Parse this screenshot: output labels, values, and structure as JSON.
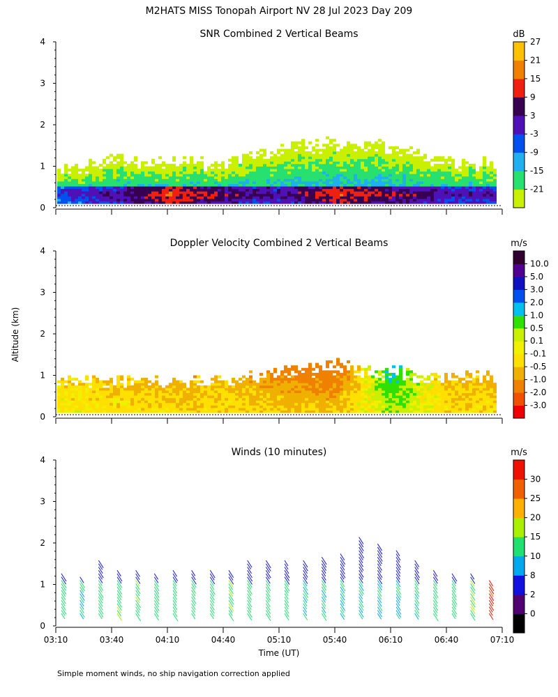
{
  "figure": {
    "title": "M2HATS MISS Tonopah Airport NV  28 Jul 2023 Day 209",
    "ylabel": "Altitude (km)",
    "xlabel": "Time (UT)",
    "footnote": "Simple moment winds, no ship navigation correction applied"
  },
  "chart_data": [
    {
      "id": "snr",
      "type": "heatmap",
      "title": "SNR Combined 2 Vertical Beams",
      "unit": "dB",
      "ylim": [
        0,
        4
      ],
      "yticks": [
        "0",
        "1",
        "2",
        "3",
        "4"
      ],
      "colorbar": {
        "colors": [
          "#c8f000",
          "#28e070",
          "#20b0f0",
          "#0050f0",
          "#5010b8",
          "#380050",
          "#f02010",
          "#f08000",
          "#ffc000"
        ],
        "labels": [
          "-21",
          "-15",
          "-9",
          "-3",
          "3",
          "9",
          "15",
          "21",
          "27"
        ]
      },
      "profiles": [
        {
          "t": "03:10",
          "top_km": 0.9,
          "max_dB": 1
        },
        {
          "t": "03:40",
          "top_km": 1.2,
          "max_dB": 6
        },
        {
          "t": "04:10",
          "top_km": 1.1,
          "max_dB": 18
        },
        {
          "t": "04:40",
          "top_km": 1.1,
          "max_dB": 10
        },
        {
          "t": "05:10",
          "top_km": 1.5,
          "max_dB": 6
        },
        {
          "t": "05:40",
          "top_km": 1.6,
          "max_dB": 16
        },
        {
          "t": "06:10",
          "top_km": 1.5,
          "max_dB": 12
        },
        {
          "t": "06:40",
          "top_km": 1.1,
          "max_dB": 5
        }
      ]
    },
    {
      "id": "doppler",
      "type": "heatmap",
      "title": "Doppler Velocity Combined 2 Vertical Beams",
      "unit": "m/s",
      "ylim": [
        0,
        4
      ],
      "yticks": [
        "0",
        "1",
        "2",
        "3",
        "4"
      ],
      "colorbar": {
        "colors": [
          "#f00000",
          "#f05000",
          "#f08000",
          "#f0b000",
          "#ffe000",
          "#f0f000",
          "#c8f000",
          "#30e000",
          "#00c0f0",
          "#0050f0",
          "#1010c0",
          "#500090",
          "#300030"
        ],
        "labels": [
          "-3.0",
          "-2.0",
          "-1.0",
          "-0.5",
          "-0.1",
          "0.1",
          "0.5",
          "1.0",
          "2.0",
          "3.0",
          "5.0",
          "10.0"
        ]
      },
      "profiles": [
        {
          "t": "03:10",
          "top_km": 0.9,
          "mean_ms": -0.2
        },
        {
          "t": "03:40",
          "top_km": 0.9,
          "mean_ms": -0.4
        },
        {
          "t": "04:10",
          "top_km": 0.9,
          "mean_ms": -0.6
        },
        {
          "t": "04:40",
          "top_km": 0.9,
          "mean_ms": -0.5
        },
        {
          "t": "05:10",
          "top_km": 1.1,
          "mean_ms": -0.8
        },
        {
          "t": "05:40",
          "top_km": 1.3,
          "mean_ms": -1.0
        },
        {
          "t": "06:10",
          "top_km": 1.1,
          "mean_ms": 0.8
        },
        {
          "t": "06:40",
          "top_km": 1.0,
          "mean_ms": -0.5
        }
      ]
    },
    {
      "id": "winds",
      "type": "scatter",
      "title": "Winds (10 minutes)",
      "unit": "m/s",
      "ylim": [
        0,
        4
      ],
      "yticks": [
        "0",
        "1",
        "2",
        "3",
        "4"
      ],
      "xticks": [
        "03:10",
        "03:40",
        "04:10",
        "04:40",
        "05:10",
        "05:40",
        "06:10",
        "06:40",
        "07:10"
      ],
      "colorbar": {
        "colors": [
          "#000000",
          "#500070",
          "#1010e0",
          "#00a8f0",
          "#20e070",
          "#a8f000",
          "#ffb000",
          "#f06000",
          "#f01000"
        ],
        "labels": [
          "0",
          "2",
          "8",
          "10",
          "15",
          "20",
          "25",
          "30"
        ]
      },
      "profiles": [
        {
          "t": "03:10",
          "top_km": 1.3,
          "speed_ms": 12
        },
        {
          "t": "03:20",
          "top_km": 1.2,
          "speed_ms": 11
        },
        {
          "t": "03:30",
          "top_km": 1.6,
          "speed_ms": 13
        },
        {
          "t": "03:40",
          "top_km": 1.4,
          "speed_ms": 14
        },
        {
          "t": "03:50",
          "top_km": 1.4,
          "speed_ms": 14
        },
        {
          "t": "04:00",
          "top_km": 1.3,
          "speed_ms": 13
        },
        {
          "t": "04:10",
          "top_km": 1.4,
          "speed_ms": 13
        },
        {
          "t": "04:20",
          "top_km": 1.4,
          "speed_ms": 12
        },
        {
          "t": "04:30",
          "top_km": 1.4,
          "speed_ms": 12
        },
        {
          "t": "04:40",
          "top_km": 1.4,
          "speed_ms": 14
        },
        {
          "t": "04:50",
          "top_km": 1.6,
          "speed_ms": 13
        },
        {
          "t": "05:00",
          "top_km": 1.6,
          "speed_ms": 12
        },
        {
          "t": "05:10",
          "top_km": 1.6,
          "speed_ms": 12
        },
        {
          "t": "05:20",
          "top_km": 1.6,
          "speed_ms": 11
        },
        {
          "t": "05:30",
          "top_km": 1.7,
          "speed_ms": 11
        },
        {
          "t": "05:40",
          "top_km": 1.8,
          "speed_ms": 10
        },
        {
          "t": "05:50",
          "top_km": 2.2,
          "speed_ms": 10
        },
        {
          "t": "06:00",
          "top_km": 2.0,
          "speed_ms": 10
        },
        {
          "t": "06:10",
          "top_km": 1.9,
          "speed_ms": 10
        },
        {
          "t": "06:20",
          "top_km": 1.6,
          "speed_ms": 11
        },
        {
          "t": "06:30",
          "top_km": 1.4,
          "speed_ms": 12
        },
        {
          "t": "06:40",
          "top_km": 1.3,
          "speed_ms": 13
        },
        {
          "t": "06:50",
          "top_km": 1.3,
          "speed_ms": 14
        },
        {
          "t": "07:00",
          "top_km": 1.1,
          "speed_ms": 31
        }
      ]
    }
  ]
}
